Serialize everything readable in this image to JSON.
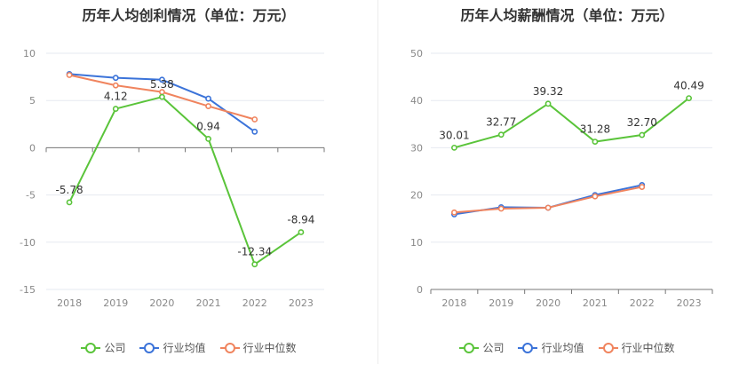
{
  "chart_data": [
    {
      "type": "line",
      "title": "历年人均创利情况（单位：万元）",
      "categories": [
        "2018",
        "2019",
        "2020",
        "2021",
        "2022",
        "2023"
      ],
      "ylim": [
        -15,
        10
      ],
      "yticks": [
        -15,
        -10,
        -5,
        0,
        5,
        10
      ],
      "grid": true,
      "legend_position": "bottom",
      "series": [
        {
          "name": "公司",
          "color": "#5ac43a",
          "values": [
            -5.78,
            4.12,
            5.38,
            0.94,
            -12.34,
            -8.94
          ],
          "labels": [
            "-5.78",
            "4.12",
            "5.38",
            "0.94",
            "-12.34",
            "-8.94"
          ]
        },
        {
          "name": "行业均值",
          "color": "#3b73d9",
          "values": [
            7.8,
            7.4,
            7.2,
            5.2,
            1.7,
            null
          ]
        },
        {
          "name": "行业中位数",
          "color": "#f0845e",
          "values": [
            7.7,
            6.6,
            5.9,
            4.4,
            3.0,
            null
          ]
        }
      ]
    },
    {
      "type": "line",
      "title": "历年人均薪酬情况（单位：万元）",
      "categories": [
        "2018",
        "2019",
        "2020",
        "2021",
        "2022",
        "2023"
      ],
      "ylim": [
        0,
        50
      ],
      "yticks": [
        0,
        10,
        20,
        30,
        40,
        50
      ],
      "grid": true,
      "legend_position": "bottom",
      "series": [
        {
          "name": "公司",
          "color": "#5ac43a",
          "values": [
            30.01,
            32.77,
            39.32,
            31.28,
            32.7,
            40.49
          ],
          "labels": [
            "30.01",
            "32.77",
            "39.32",
            "31.28",
            "32.70",
            "40.49"
          ]
        },
        {
          "name": "行业均值",
          "color": "#3b73d9",
          "values": [
            15.9,
            17.4,
            17.3,
            20.0,
            22.1,
            null
          ]
        },
        {
          "name": "行业中位数",
          "color": "#f0845e",
          "values": [
            16.3,
            17.1,
            17.3,
            19.7,
            21.7,
            null
          ]
        }
      ]
    }
  ]
}
